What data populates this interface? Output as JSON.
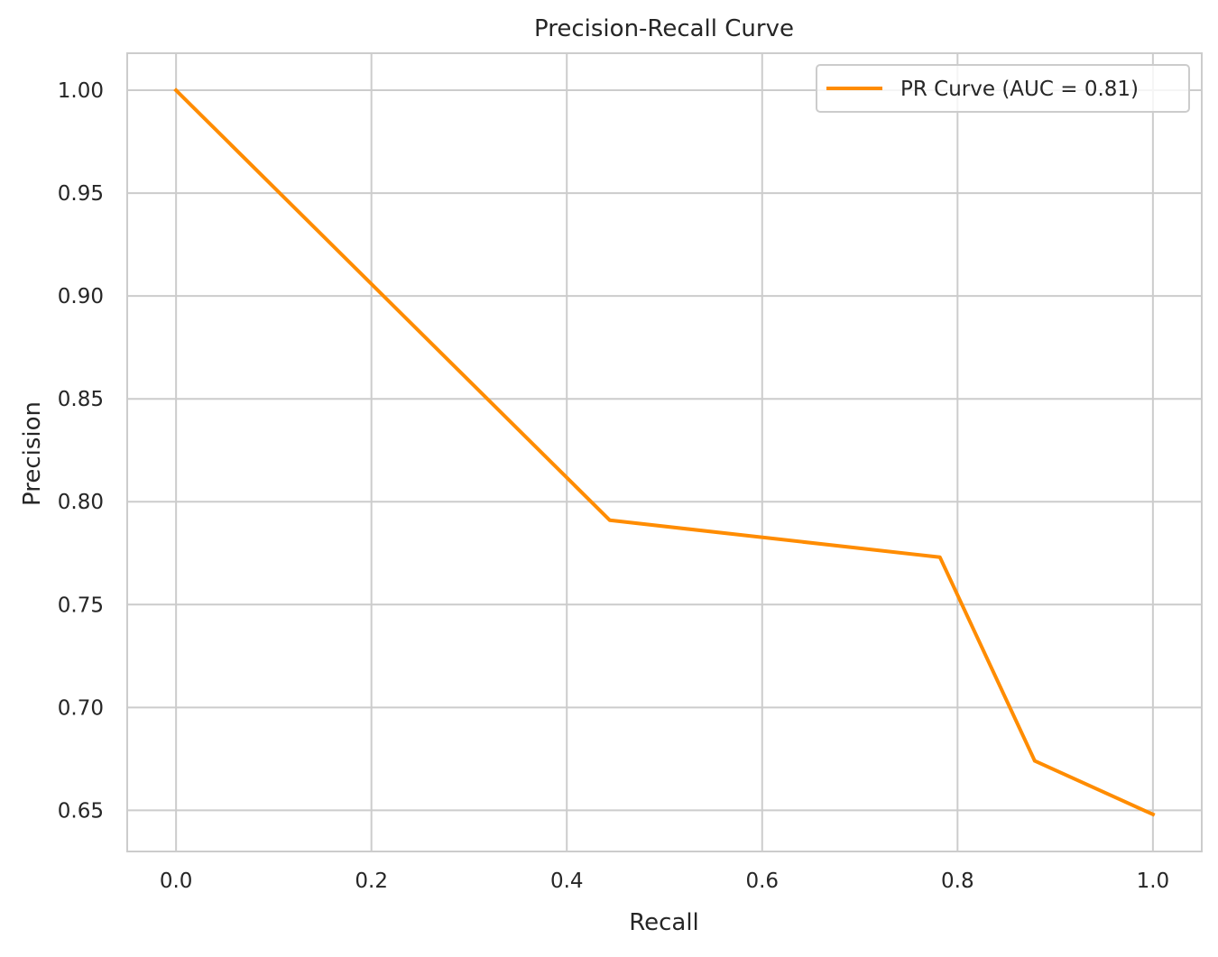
{
  "chart_data": {
    "type": "line",
    "title": "Precision-Recall Curve",
    "xlabel": "Recall",
    "ylabel": "Precision",
    "xlim": [
      -0.05,
      1.05
    ],
    "ylim": [
      0.63,
      1.018
    ],
    "xticks": [
      0.0,
      0.2,
      0.4,
      0.6,
      0.8,
      1.0
    ],
    "xtick_labels": [
      "0.0",
      "0.2",
      "0.4",
      "0.6",
      "0.8",
      "1.0"
    ],
    "yticks": [
      0.65,
      0.7,
      0.75,
      0.8,
      0.85,
      0.9,
      0.95,
      1.0
    ],
    "ytick_labels": [
      "0.65",
      "0.70",
      "0.75",
      "0.80",
      "0.85",
      "0.90",
      "0.95",
      "1.00"
    ],
    "grid": true,
    "legend_position": "top-right",
    "series": [
      {
        "name": "PR Curve (AUC = 0.81)",
        "color": "#ff8c00",
        "x": [
          0.0,
          0.444,
          0.782,
          0.879,
          1.0
        ],
        "y": [
          1.0,
          0.791,
          0.773,
          0.674,
          0.648
        ]
      }
    ]
  }
}
